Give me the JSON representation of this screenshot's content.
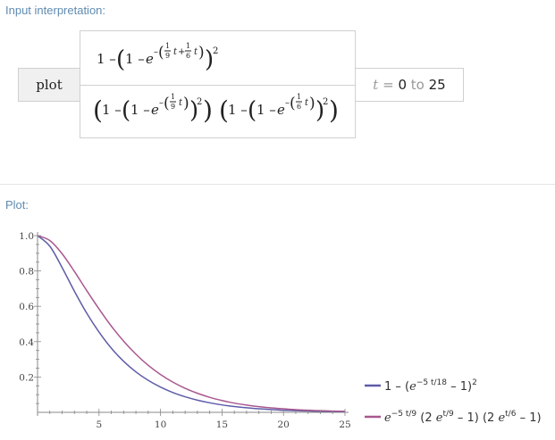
{
  "input_section": {
    "label": "Input interpretation:",
    "plot_word": "plot",
    "range": {
      "variable": "t",
      "equals": "=",
      "from": "0",
      "to_word": "to",
      "to": "25"
    },
    "expression": {
      "numerator": "1 − (1 − e^(−((1/9) t + (1/6) t)))^2",
      "denominator": "(1 − (1 − e^(−((1/9) t)))^2) (1 − (1 − e^(−((1/6) t)))^2)"
    }
  },
  "plot_section": {
    "label": "Plot:"
  },
  "colors": {
    "series1": "#5e5ca8",
    "series2": "#a8588f",
    "axis": "#888888",
    "label": "#5f8bb0"
  },
  "chart_data": {
    "type": "line",
    "title": "",
    "xlabel": "",
    "ylabel": "",
    "xlim": [
      0,
      25
    ],
    "ylim": [
      0,
      1.0
    ],
    "x_ticks": [
      5,
      10,
      15,
      20,
      25
    ],
    "y_ticks": [
      0.2,
      0.4,
      0.6,
      0.8,
      1.0
    ],
    "y_tick_labels": [
      "0.2",
      "0.4",
      "0.6",
      "0.8",
      "1.0"
    ],
    "grid": false,
    "legend_placement": "bottom-right",
    "series": [
      {
        "name": "1 − (e^(−5 t/18) − 1)^2",
        "x": [
          0,
          1,
          2,
          3,
          4,
          5,
          6,
          7,
          8,
          9,
          10,
          11,
          12,
          13,
          14,
          15,
          16,
          17,
          18,
          19,
          20,
          21,
          22,
          23,
          24,
          25
        ],
        "values": [
          1.0,
          0.94,
          0.819,
          0.685,
          0.561,
          0.454,
          0.363,
          0.289,
          0.229,
          0.181,
          0.143,
          0.112,
          0.088,
          0.069,
          0.054,
          0.042,
          0.033,
          0.026,
          0.02,
          0.016,
          0.012,
          0.0096,
          0.0075,
          0.0059,
          0.0046,
          0.0036
        ]
      },
      {
        "name": "e^(−5 t/9) (2 e^(t/9) − 1) (2 e^(t/6) − 1)",
        "x": [
          0,
          1,
          2,
          3,
          4,
          5,
          6,
          7,
          8,
          9,
          10,
          11,
          12,
          13,
          14,
          15,
          16,
          17,
          18,
          19,
          20,
          21,
          22,
          23,
          24,
          25
        ],
        "values": [
          1.0,
          0.972,
          0.897,
          0.797,
          0.689,
          0.585,
          0.488,
          0.403,
          0.329,
          0.266,
          0.214,
          0.171,
          0.136,
          0.108,
          0.085,
          0.067,
          0.052,
          0.041,
          0.032,
          0.025,
          0.02,
          0.015,
          0.012,
          0.0092,
          0.0071,
          0.0055
        ]
      }
    ]
  }
}
